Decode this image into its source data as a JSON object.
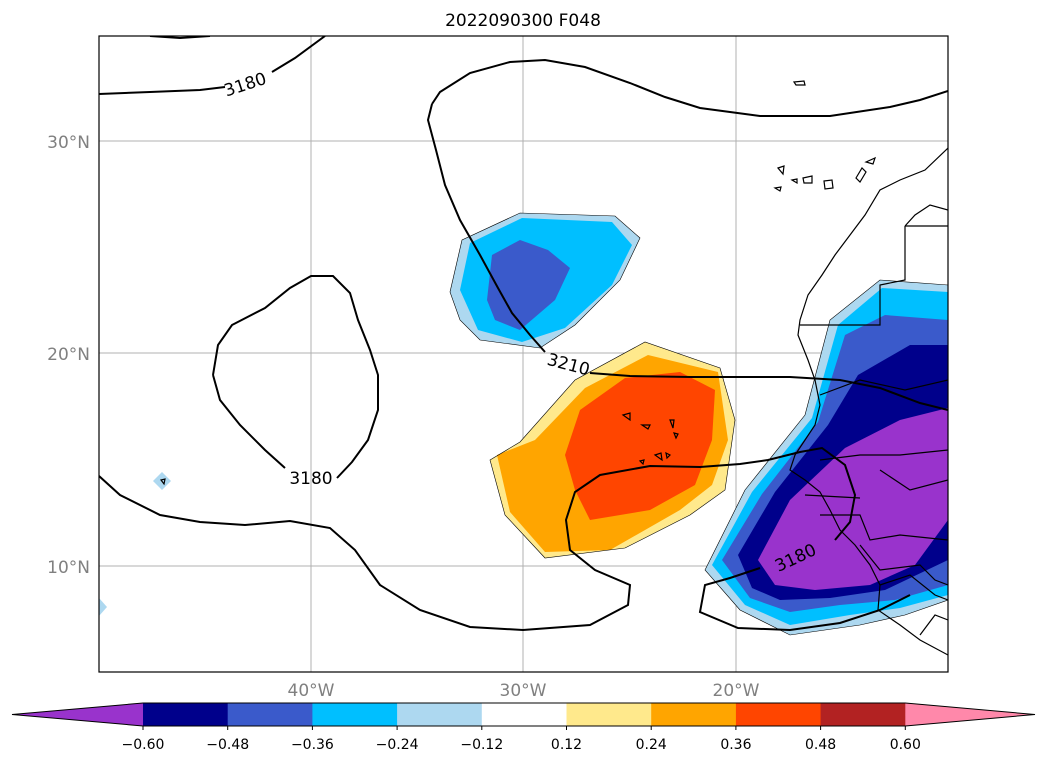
{
  "title": "2022090300 F048",
  "axes": {
    "lon_ticks": [
      "40°W",
      "30°W",
      "20°W"
    ],
    "lat_ticks": [
      "30°N",
      "20°N",
      "10°N"
    ]
  },
  "contour_labels": [
    "3180",
    "3210",
    "3180",
    "3180"
  ],
  "colorbar": {
    "tick_labels": [
      "−0.60",
      "−0.48",
      "−0.36",
      "−0.24",
      "−0.12",
      "0.12",
      "0.24",
      "0.36",
      "0.48",
      "0.60"
    ],
    "colors": [
      "#9933cc",
      "#00008b",
      "#3a5acb",
      "#00bfff",
      "#add8f0",
      "#ffffff",
      "#ffe98c",
      "#ffa500",
      "#ff4500",
      "#b22222",
      "#ff88aa"
    ]
  }
}
